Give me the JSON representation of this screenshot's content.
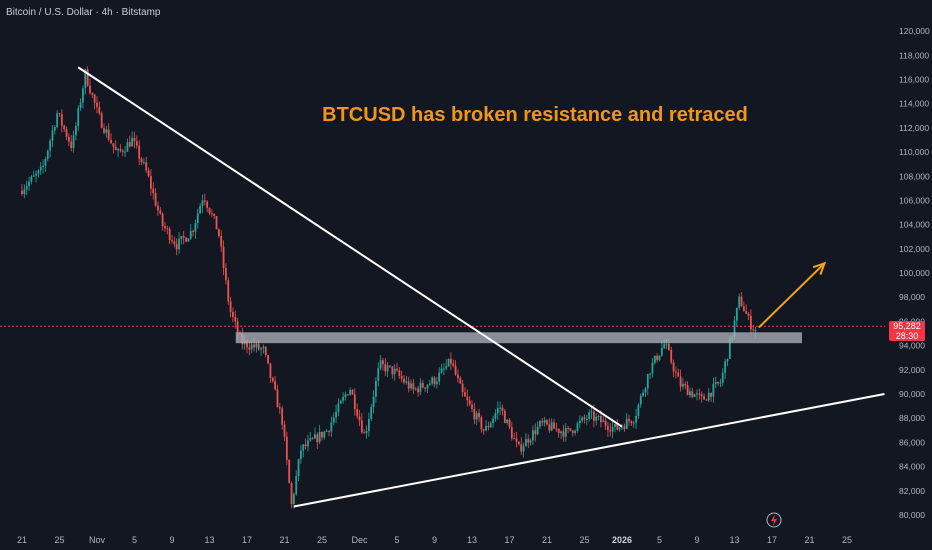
{
  "header": {
    "title": "Bitcoin / U.S. Dollar · 4h · Bitstamp"
  },
  "annotation": {
    "text": "BTCUSD has broken resistance and retraced",
    "color": "#f0961b"
  },
  "price_badge": {
    "price": "95,282",
    "countdown": "28:30",
    "color": "#f23645"
  },
  "colors": {
    "background": "#131722",
    "up": "#26a69a",
    "down": "#ef5350",
    "lines": "#ffffff",
    "zone": "#b2b5be",
    "arrow": "#f7a21b"
  },
  "icons": {
    "flash": "lightning-icon"
  },
  "chart_data": {
    "type": "candlestick",
    "symbol": "BTCUSD",
    "timeframe": "4h",
    "ylim": [
      79500,
      121000
    ],
    "y_ticks": [
      80000,
      82000,
      84000,
      86000,
      88000,
      90000,
      92000,
      94000,
      96000,
      98000,
      100000,
      102000,
      104000,
      106000,
      108000,
      110000,
      112000,
      114000,
      116000,
      118000,
      120000
    ],
    "y_tick_labels": [
      "80,000",
      "82,000",
      "84,000",
      "86,000",
      "88,000",
      "90,000",
      "92,000",
      "94,000",
      "96,000",
      "98,000",
      "100,000",
      "102,000",
      "104,000",
      "106,000",
      "108,000",
      "110,000",
      "112,000",
      "114,000",
      "116,000",
      "118,000",
      "120,000"
    ],
    "x_ticks": [
      "21",
      "25",
      "Nov",
      "5",
      "9",
      "13",
      "17",
      "21",
      "25",
      "Dec",
      "5",
      "9",
      "13",
      "17",
      "21",
      "25",
      "2026",
      "5",
      "9",
      "13",
      "17",
      "21",
      "25"
    ],
    "bold_x_ticks": [
      "2026"
    ],
    "x_index_range": [
      0,
      23
    ],
    "price_path": [
      [
        0,
        106800
      ],
      [
        0.6,
        108500
      ],
      [
        1.0,
        113200
      ],
      [
        1.4,
        110400
      ],
      [
        1.75,
        116500
      ],
      [
        2.1,
        113000
      ],
      [
        2.6,
        109800
      ],
      [
        3.0,
        111000
      ],
      [
        3.4,
        108200
      ],
      [
        3.8,
        104000
      ],
      [
        4.2,
        102300
      ],
      [
        4.6,
        103500
      ],
      [
        4.9,
        106500
      ],
      [
        5.3,
        103400
      ],
      [
        5.6,
        97000
      ],
      [
        5.9,
        94300
      ],
      [
        6.5,
        93600
      ],
      [
        7.0,
        87800
      ],
      [
        7.25,
        80800
      ],
      [
        7.5,
        85400
      ],
      [
        8.2,
        87000
      ],
      [
        8.8,
        90600
      ],
      [
        9.2,
        86500
      ],
      [
        9.6,
        92400
      ],
      [
        10.0,
        91800
      ],
      [
        10.5,
        90300
      ],
      [
        11.1,
        91200
      ],
      [
        11.5,
        92700
      ],
      [
        11.8,
        90000
      ],
      [
        12.4,
        86900
      ],
      [
        12.8,
        89000
      ],
      [
        13.3,
        85400
      ],
      [
        13.9,
        87500
      ],
      [
        14.6,
        86800
      ],
      [
        15.2,
        88200
      ],
      [
        15.9,
        87100
      ],
      [
        16.4,
        88100
      ],
      [
        16.8,
        92000
      ],
      [
        17.2,
        94200
      ],
      [
        17.6,
        90800
      ],
      [
        18.2,
        89500
      ],
      [
        18.7,
        91000
      ],
      [
        19.0,
        95000
      ],
      [
        19.2,
        97900
      ],
      [
        19.45,
        96000
      ],
      [
        19.6,
        95282
      ]
    ],
    "series": [
      {
        "name": "Descending trendline",
        "x": [
          1.5,
          16.0
        ],
        "y": [
          117000,
          87300
        ]
      },
      {
        "name": "Ascending trendline",
        "x": [
          7.25,
          23.0
        ],
        "y": [
          80700,
          90000
        ]
      },
      {
        "name": "Resistance zone",
        "x": [
          5.7,
          20.8
        ],
        "y": [
          94200,
          95100
        ]
      },
      {
        "name": "Projection arrow",
        "x": [
          19.65,
          21.4
        ],
        "y": [
          95500,
          100800
        ]
      }
    ],
    "last_price": 95282,
    "price_line": 95600,
    "grid": false
  }
}
